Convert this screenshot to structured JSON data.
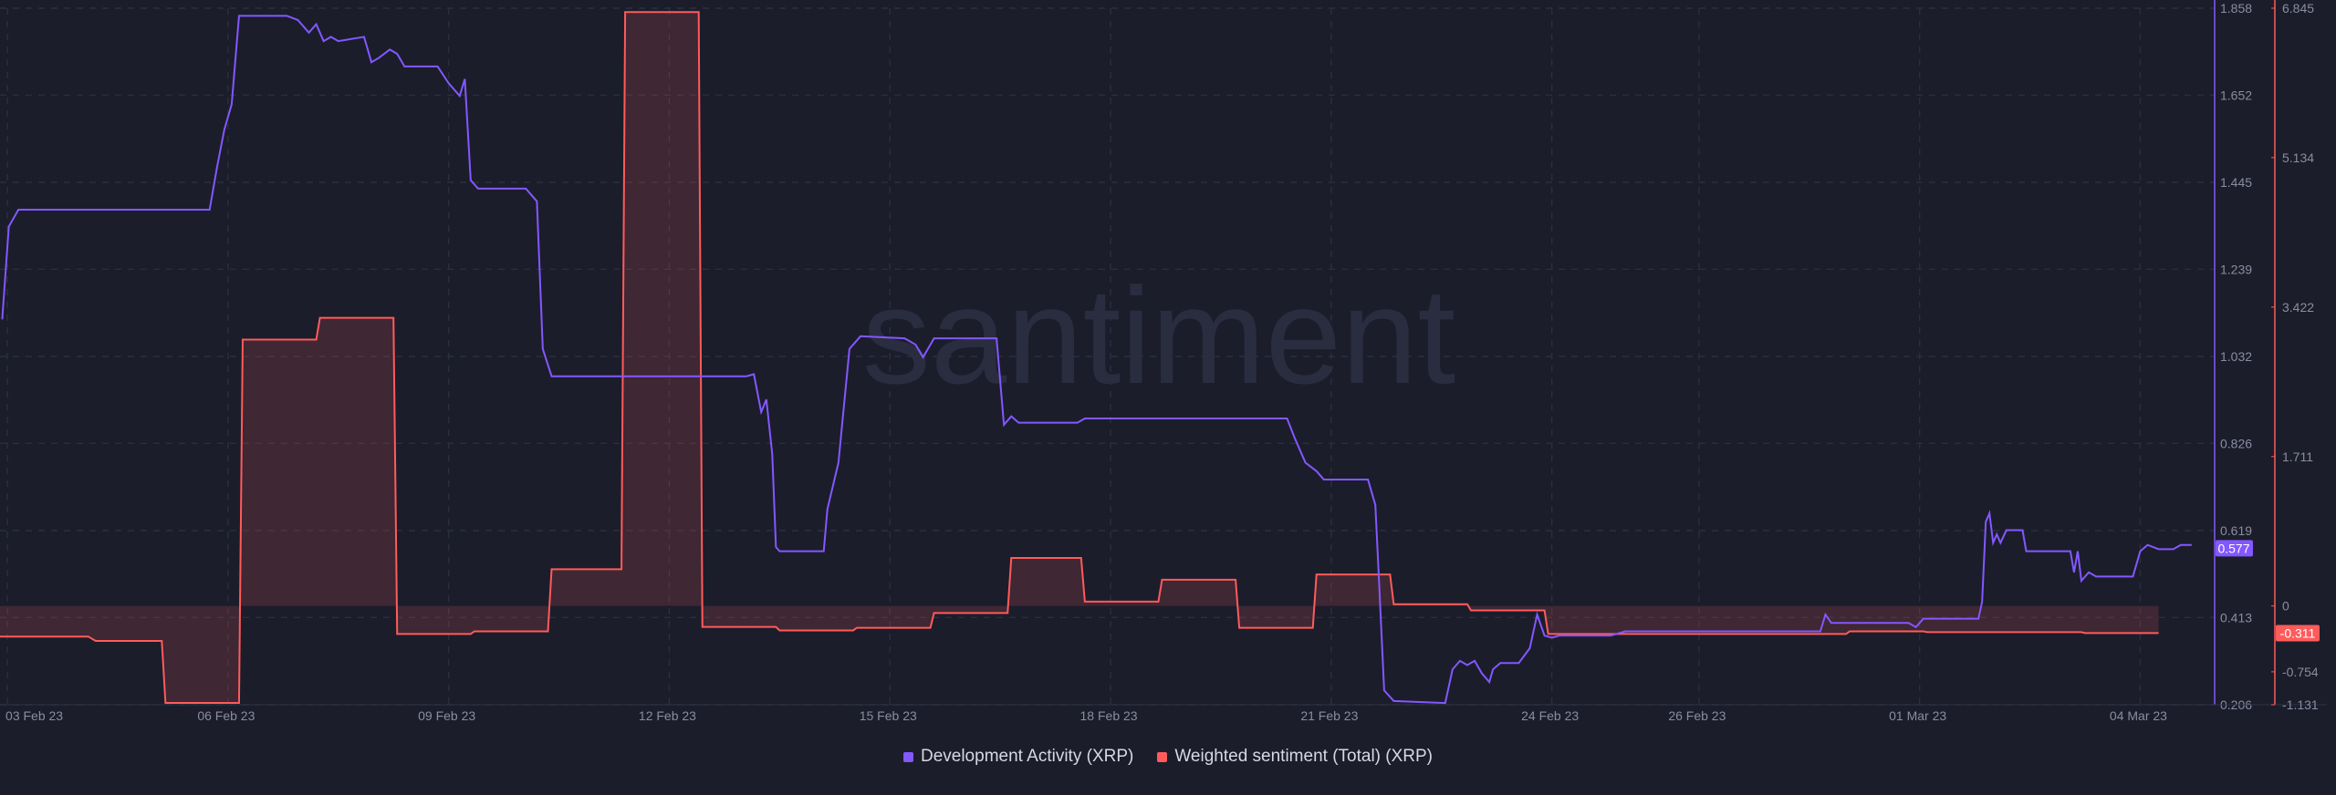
{
  "watermark": "santiment",
  "colors": {
    "background": "#1b1d2b",
    "dev_activity": "#8358ff",
    "sentiment": "#ff5b5b",
    "grid": "#2b2e3f",
    "tick_text": "#8a8da0"
  },
  "chart_data": {
    "type": "line",
    "title": "",
    "x_ticks": [
      "03 Feb 23",
      "06 Feb 23",
      "09 Feb 23",
      "12 Feb 23",
      "15 Feb 23",
      "18 Feb 23",
      "21 Feb 23",
      "24 Feb 23",
      "26 Feb 23",
      "01 Mar 23",
      "04 Mar 23"
    ],
    "x_tick_days": [
      0.1,
      3.1,
      6.1,
      9.1,
      12.1,
      15.1,
      18.1,
      21.1,
      23.1,
      26.1,
      29.1
    ],
    "xlim": [
      0,
      30
    ],
    "y_left": {
      "ticks": [
        "1.858",
        "1.652",
        "1.445",
        "1.239",
        "1.032",
        "0.826",
        "0.619",
        "0.413",
        "0.206"
      ],
      "range": [
        0.206,
        1.858
      ],
      "current_value": "0.577"
    },
    "y_right": {
      "ticks": [
        "6.845",
        "5.134",
        "3.422",
        "1.711",
        "0",
        "-0.754",
        "-1.131"
      ],
      "range": [
        -1.131,
        6.845
      ],
      "current_value": "-0.311"
    },
    "series": [
      {
        "name": "Development Activity (XRP)",
        "axis": "left",
        "style": "line",
        "points": [
          [
            0.03,
            1.12
          ],
          [
            0.12,
            1.34
          ],
          [
            0.25,
            1.38
          ],
          [
            2.85,
            1.38
          ],
          [
            2.95,
            1.48
          ],
          [
            3.05,
            1.57
          ],
          [
            3.15,
            1.63
          ],
          [
            3.25,
            1.84
          ],
          [
            3.9,
            1.84
          ],
          [
            4.05,
            1.83
          ],
          [
            4.2,
            1.8
          ],
          [
            4.3,
            1.82
          ],
          [
            4.4,
            1.78
          ],
          [
            4.5,
            1.79
          ],
          [
            4.6,
            1.78
          ],
          [
            4.95,
            1.79
          ],
          [
            5.05,
            1.73
          ],
          [
            5.15,
            1.74
          ],
          [
            5.3,
            1.76
          ],
          [
            5.4,
            1.75
          ],
          [
            5.5,
            1.72
          ],
          [
            5.95,
            1.72
          ],
          [
            6.1,
            1.68
          ],
          [
            6.25,
            1.65
          ],
          [
            6.32,
            1.69
          ],
          [
            6.4,
            1.45
          ],
          [
            6.5,
            1.43
          ],
          [
            7.15,
            1.43
          ],
          [
            7.3,
            1.4
          ],
          [
            7.38,
            1.05
          ],
          [
            7.5,
            0.985
          ],
          [
            10.15,
            0.985
          ],
          [
            10.25,
            0.99
          ],
          [
            10.35,
            0.9
          ],
          [
            10.42,
            0.93
          ],
          [
            10.5,
            0.8
          ],
          [
            10.55,
            0.58
          ],
          [
            10.6,
            0.57
          ],
          [
            11.2,
            0.57
          ],
          [
            11.25,
            0.67
          ],
          [
            11.4,
            0.78
          ],
          [
            11.55,
            1.05
          ],
          [
            11.7,
            1.08
          ],
          [
            12.3,
            1.075
          ],
          [
            12.45,
            1.06
          ],
          [
            12.55,
            1.03
          ],
          [
            12.7,
            1.075
          ],
          [
            13.55,
            1.075
          ],
          [
            13.65,
            0.87
          ],
          [
            13.75,
            0.89
          ],
          [
            13.85,
            0.875
          ],
          [
            14.65,
            0.875
          ],
          [
            14.75,
            0.885
          ],
          [
            17.5,
            0.885
          ],
          [
            17.6,
            0.84
          ],
          [
            17.75,
            0.78
          ],
          [
            17.9,
            0.76
          ],
          [
            18.0,
            0.74
          ],
          [
            18.6,
            0.74
          ],
          [
            18.7,
            0.68
          ],
          [
            18.75,
            0.5
          ],
          [
            18.82,
            0.24
          ],
          [
            18.95,
            0.215
          ],
          [
            19.65,
            0.21
          ],
          [
            19.75,
            0.29
          ],
          [
            19.85,
            0.31
          ],
          [
            19.95,
            0.3
          ],
          [
            20.05,
            0.31
          ],
          [
            20.15,
            0.28
          ],
          [
            20.25,
            0.26
          ],
          [
            20.3,
            0.29
          ],
          [
            20.4,
            0.305
          ],
          [
            20.65,
            0.305
          ],
          [
            20.8,
            0.34
          ],
          [
            20.9,
            0.42
          ],
          [
            21.0,
            0.37
          ],
          [
            21.1,
            0.365
          ],
          [
            21.2,
            0.37
          ],
          [
            21.9,
            0.37
          ],
          [
            22.0,
            0.375
          ],
          [
            22.1,
            0.38
          ],
          [
            24.75,
            0.38
          ],
          [
            24.82,
            0.42
          ],
          [
            24.9,
            0.4
          ],
          [
            25.95,
            0.4
          ],
          [
            26.05,
            0.39
          ],
          [
            26.15,
            0.41
          ],
          [
            26.9,
            0.41
          ],
          [
            26.95,
            0.45
          ],
          [
            27.0,
            0.64
          ],
          [
            27.05,
            0.66
          ],
          [
            27.1,
            0.59
          ],
          [
            27.15,
            0.61
          ],
          [
            27.2,
            0.59
          ],
          [
            27.28,
            0.62
          ],
          [
            27.5,
            0.62
          ],
          [
            27.55,
            0.57
          ],
          [
            28.15,
            0.57
          ],
          [
            28.2,
            0.52
          ],
          [
            28.25,
            0.57
          ],
          [
            28.3,
            0.5
          ],
          [
            28.4,
            0.52
          ],
          [
            28.5,
            0.51
          ],
          [
            29.0,
            0.51
          ],
          [
            29.1,
            0.57
          ],
          [
            29.2,
            0.585
          ],
          [
            29.35,
            0.575
          ],
          [
            29.55,
            0.575
          ],
          [
            29.65,
            0.585
          ],
          [
            29.8,
            0.585
          ]
        ]
      },
      {
        "name": "Weighted sentiment (Total) (XRP)",
        "axis": "right",
        "style": "step-area",
        "points": [
          [
            0.0,
            -0.35
          ],
          [
            1.2,
            -0.35
          ],
          [
            1.3,
            -0.4
          ],
          [
            2.2,
            -0.4
          ],
          [
            2.25,
            -1.11
          ],
          [
            3.25,
            -1.11
          ],
          [
            3.3,
            3.05
          ],
          [
            4.3,
            3.05
          ],
          [
            4.35,
            3.3
          ],
          [
            5.35,
            3.3
          ],
          [
            5.4,
            -0.32
          ],
          [
            6.4,
            -0.32
          ],
          [
            6.45,
            -0.29
          ],
          [
            7.45,
            -0.29
          ],
          [
            7.5,
            0.42
          ],
          [
            8.45,
            0.42
          ],
          [
            8.5,
            6.8
          ],
          [
            9.5,
            6.8
          ],
          [
            9.55,
            -0.24
          ],
          [
            10.55,
            -0.24
          ],
          [
            10.6,
            -0.28
          ],
          [
            11.6,
            -0.28
          ],
          [
            11.65,
            -0.25
          ],
          [
            12.65,
            -0.25
          ],
          [
            12.7,
            -0.08
          ],
          [
            13.7,
            -0.08
          ],
          [
            13.75,
            0.55
          ],
          [
            14.7,
            0.55
          ],
          [
            14.75,
            0.05
          ],
          [
            15.75,
            0.05
          ],
          [
            15.8,
            0.3
          ],
          [
            16.8,
            0.3
          ],
          [
            16.85,
            -0.25
          ],
          [
            17.85,
            -0.25
          ],
          [
            17.9,
            0.36
          ],
          [
            18.9,
            0.36
          ],
          [
            18.95,
            0.02
          ],
          [
            19.95,
            0.02
          ],
          [
            20.0,
            -0.05
          ],
          [
            21.0,
            -0.05
          ],
          [
            21.05,
            -0.32
          ],
          [
            25.1,
            -0.32
          ],
          [
            25.15,
            -0.29
          ],
          [
            26.15,
            -0.29
          ],
          [
            26.2,
            -0.3
          ],
          [
            28.3,
            -0.3
          ],
          [
            28.35,
            -0.31
          ],
          [
            29.35,
            -0.31
          ]
        ]
      }
    ],
    "grid": true,
    "legend_position": "bottom-center"
  }
}
